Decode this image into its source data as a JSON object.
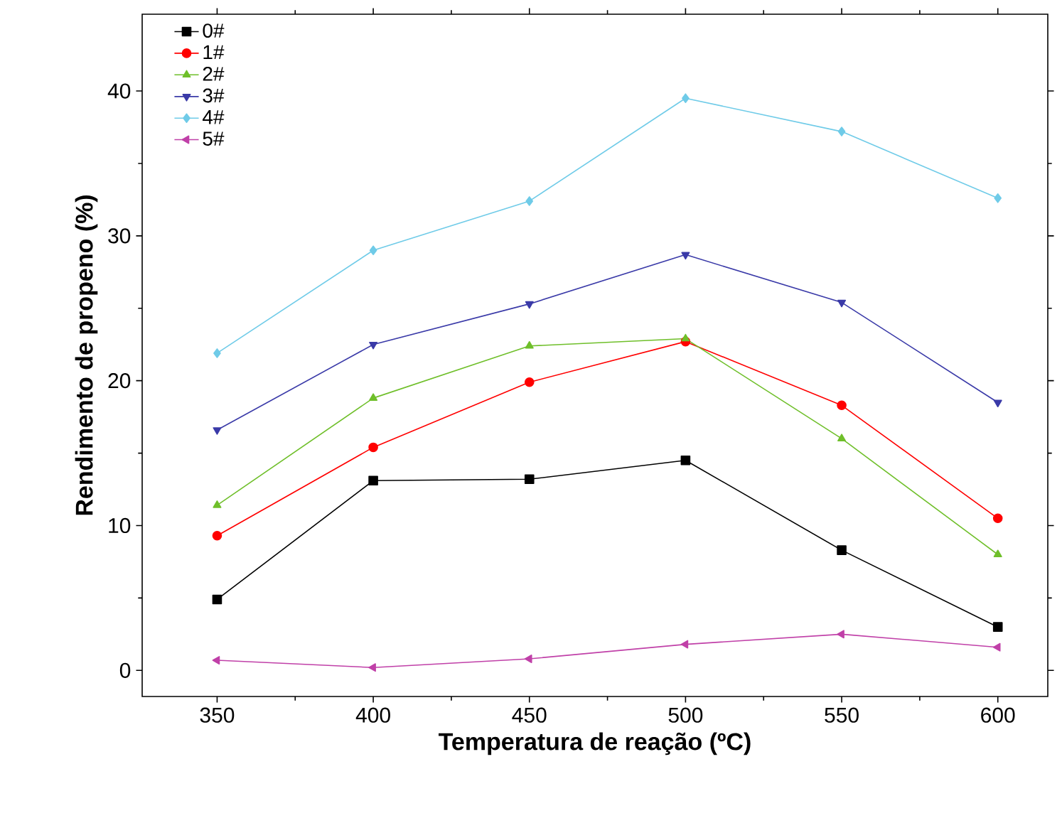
{
  "chart_data": {
    "type": "line",
    "xlabel": "Temperatura de reação (ºC)",
    "ylabel": "Rendimento de propeno (%)",
    "x": [
      350,
      400,
      450,
      500,
      550,
      600
    ],
    "series": [
      {
        "name": "0#",
        "color": "#000000",
        "marker": "square",
        "values": [
          4.9,
          13.1,
          13.2,
          14.5,
          8.3,
          3.0
        ]
      },
      {
        "name": "1#",
        "color": "#ff0000",
        "marker": "circle",
        "values": [
          9.3,
          15.4,
          19.9,
          22.7,
          18.3,
          10.5
        ]
      },
      {
        "name": "2#",
        "color": "#6fbf2a",
        "marker": "triangle",
        "values": [
          11.4,
          18.8,
          22.4,
          22.9,
          16.0,
          8.0
        ]
      },
      {
        "name": "3#",
        "color": "#3a3aa8",
        "marker": "triangle-down",
        "values": [
          16.6,
          22.5,
          25.3,
          28.7,
          25.4,
          18.5
        ]
      },
      {
        "name": "4#",
        "color": "#6fcbe8",
        "marker": "diamond",
        "values": [
          21.9,
          29.0,
          32.4,
          39.5,
          37.2,
          32.6
        ]
      },
      {
        "name": "5#",
        "color": "#c040a8",
        "marker": "triangle-left",
        "values": [
          0.7,
          0.2,
          0.8,
          1.8,
          2.5,
          1.6
        ]
      }
    ],
    "xlim": [
      326,
      616
    ],
    "ylim": [
      -1.8,
      45.3
    ],
    "xticks": [
      350,
      400,
      450,
      500,
      550,
      600
    ],
    "yticks": [
      0,
      10,
      20,
      30,
      40
    ],
    "legend": "top left",
    "grid": false,
    "line_style": "solid"
  }
}
